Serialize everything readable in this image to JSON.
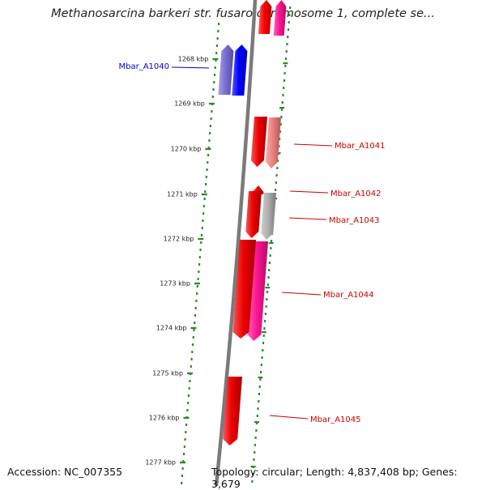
{
  "title": "Methanosarcina barkeri str. fusaro chromosome 1, complete se...",
  "footer": {
    "accession": "Accession: NC_007355",
    "summary": "Topology: circular; Length: 4,837,408 bp; Genes: 3,679"
  },
  "colors": {
    "backbone": "#7a7a7a",
    "ticks": "#2e8b2e",
    "label_blue": "#0000cc",
    "label_red": "#cc0000"
  },
  "ticks": [
    "1268 kbp",
    "1269 kbp",
    "1270 kbp",
    "1271 kbp",
    "1272 kbp",
    "1273 kbp",
    "1274 kbp",
    "1275 kbp",
    "1276 kbp",
    "1277 kbp"
  ],
  "genes": [
    {
      "label": "",
      "strand": "forward",
      "color": "#ff0000"
    },
    {
      "label": "",
      "strand": "forward",
      "color": "#ff1493"
    },
    {
      "label": "Mbar_A1040",
      "strand": "forward",
      "color": "#7a70d6"
    },
    {
      "label": "",
      "strand": "forward",
      "color": "#0000ff"
    },
    {
      "label": "Mbar_A1041",
      "strand": "reverse",
      "color": "#ee0000"
    },
    {
      "label": "",
      "strand": "reverse",
      "color": "#f08080"
    },
    {
      "label": "Mbar_A1042",
      "strand": "forward",
      "color": "#ff0000"
    },
    {
      "label": "Mbar_A1043",
      "strand": "reverse",
      "color": "#b0b0b0"
    },
    {
      "label": "",
      "strand": "reverse",
      "color": "#ee0000"
    },
    {
      "label": "Mbar_A1044",
      "strand": "reverse",
      "color": "#ff1493"
    },
    {
      "label": "",
      "strand": "reverse",
      "color": "#ee0000"
    },
    {
      "label": "Mbar_A1045",
      "strand": "reverse",
      "color": "#ee0000"
    }
  ]
}
